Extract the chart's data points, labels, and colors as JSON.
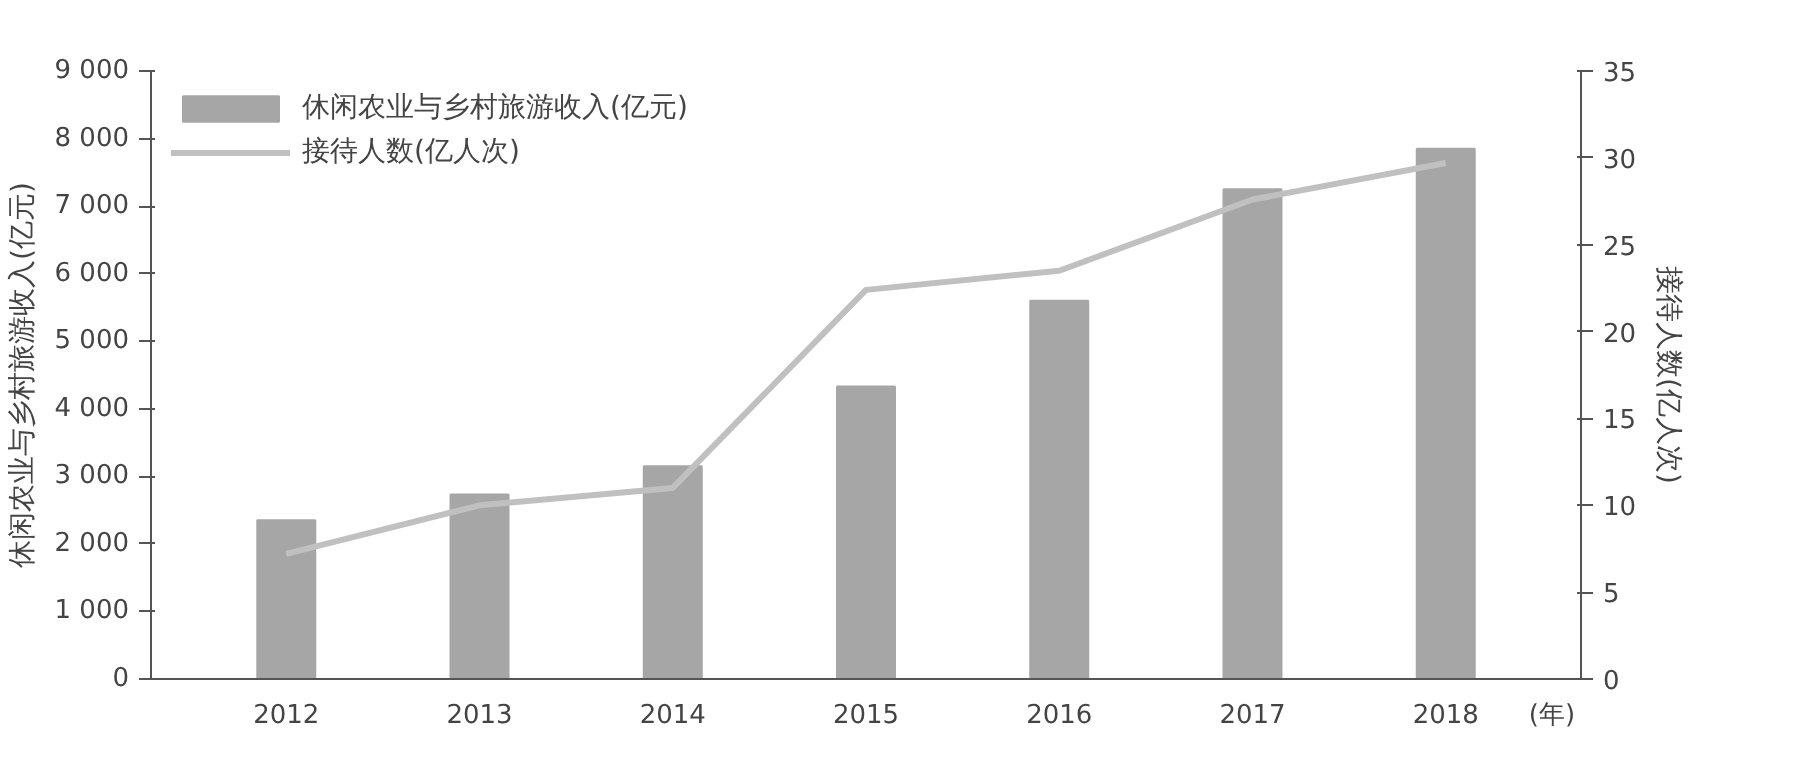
{
  "chart_data": {
    "type": "bar",
    "categories": [
      "2012",
      "2013",
      "2014",
      "2015",
      "2016",
      "2017",
      "2018"
    ],
    "ylabel": "休闲农业与乡村旅游收入(亿元)",
    "y2label": "接待人数(亿人次)",
    "series": [
      {
        "name": "休闲农业与乡村旅游收入(亿元)",
        "color": "#a6a6a6",
        "values": [
          2350,
          2730,
          3150,
          4330,
          5600,
          7250,
          7850
        ]
      },
      {
        "name": "接待人数(亿人次)",
        "type": "line",
        "axis": "y2",
        "color": "#c0c0c0",
        "values": [
          7.2,
          10,
          11,
          22.4,
          23.5,
          27.6,
          29.7
        ]
      }
    ],
    "ylim": [
      0,
      9000
    ],
    "yticks": [
      0,
      {
        "value": 1000,
        "label": "1 000"
      },
      {
        "value": 2000,
        "label": "2 000"
      },
      {
        "value": 3000,
        "label": "3 000"
      },
      {
        "value": 4000,
        "label": "4 000"
      },
      {
        "value": 5000,
        "label": "5 000"
      },
      {
        "value": 6000,
        "label": "6 000"
      },
      {
        "value": 7000,
        "label": "7 000"
      },
      {
        "value": 8000,
        "label": "8 000"
      },
      {
        "value": 9000,
        "label": "9 000"
      }
    ],
    "y2lim": [
      0,
      35
    ],
    "y2ticks": [
      0,
      5,
      10,
      15,
      20,
      25,
      30,
      35
    ],
    "annotations": [
      "(年)"
    ],
    "legend": "top left",
    "grid": false
  }
}
